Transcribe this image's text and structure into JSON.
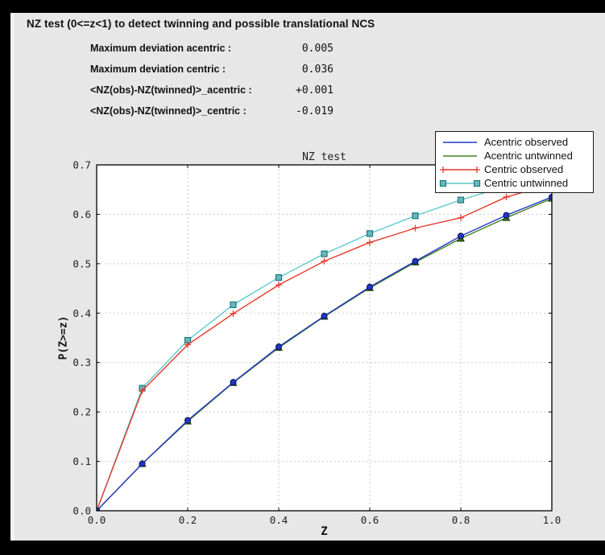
{
  "header": {
    "title": "NZ test (0<=z<1) to detect twinning and possible translational NCS",
    "stats": [
      {
        "label": "Maximum deviation acentric :",
        "value": "0.005"
      },
      {
        "label": "Maximum deviation centric :",
        "value": "0.036"
      },
      {
        "label": "<NZ(obs)-NZ(twinned)>_acentric :",
        "value": "+0.001"
      },
      {
        "label": "<NZ(obs)-NZ(twinned)>_centric :",
        "value": "-0.019"
      }
    ]
  },
  "chart_data": {
    "type": "line",
    "title": "NZ test",
    "xlabel": "Z",
    "ylabel": "P(Z>=z)",
    "xlim": [
      0.0,
      1.0
    ],
    "ylim": [
      0.0,
      0.7
    ],
    "xticks": [
      "0.0",
      "0.2",
      "0.4",
      "0.6",
      "0.8",
      "1.0"
    ],
    "yticks": [
      "0.0",
      "0.1",
      "0.2",
      "0.3",
      "0.4",
      "0.5",
      "0.6",
      "0.7"
    ],
    "grid": true,
    "legend_position": "top-right",
    "x": [
      0.0,
      0.1,
      0.2,
      0.3,
      0.4,
      0.5,
      0.6,
      0.7,
      0.8,
      0.9,
      1.0
    ],
    "series": [
      {
        "name": "Acentric observed",
        "color": "#2136c6",
        "marker": "circle",
        "marker_fill": "#2136c6",
        "marker_edge": "#001040",
        "values": [
          0.0,
          0.095,
          0.183,
          0.26,
          0.332,
          0.394,
          0.453,
          0.505,
          0.556,
          0.598,
          0.635
        ]
      },
      {
        "name": "Acentric untwinned",
        "color": "#42801f",
        "marker": "triangle",
        "marker_fill": "#3a7a1e",
        "marker_edge": "#0c3000",
        "values": [
          0.0,
          0.095,
          0.181,
          0.259,
          0.33,
          0.393,
          0.451,
          0.503,
          0.551,
          0.593,
          0.632
        ]
      },
      {
        "name": "Centric observed",
        "color": "#e5392a",
        "marker": "plus",
        "marker_fill": "#f08a80",
        "marker_edge": "#e5392a",
        "values": [
          0.0,
          0.243,
          0.336,
          0.399,
          0.457,
          0.505,
          0.543,
          0.572,
          0.593,
          0.635,
          0.661
        ]
      },
      {
        "name": "Centric untwinned",
        "color": "#5cc9cc",
        "marker": "square",
        "marker_fill": "#66b8bc",
        "marker_edge": "#1e797d",
        "values": [
          0.0,
          0.248,
          0.345,
          0.417,
          0.472,
          0.52,
          0.561,
          0.597,
          0.629,
          0.657,
          0.683
        ]
      }
    ]
  },
  "style": {
    "panel_bg": "#e7e7e7",
    "plot_bg": "#ffffff",
    "grid_color": "#c9c9c9",
    "spine_color": "#000000"
  }
}
